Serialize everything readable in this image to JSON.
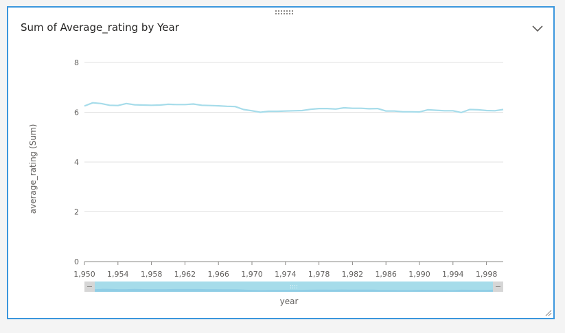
{
  "visual": {
    "title": "Sum of Average_rating by Year",
    "collapse_icon": "chevron-down-icon",
    "drag_icon": "grip-dots-icon",
    "resize_icon": "resize-corner-icon"
  },
  "colors": {
    "line": "#a6dcea",
    "grid": "#e1e1e1",
    "scroll_track": "#a6dcea",
    "scroll_thumb_end": "#d6d6d6",
    "border": "#3a96dd"
  },
  "chart_data": {
    "type": "line",
    "title": "Sum of Average_rating by Year",
    "xlabel": "year",
    "ylabel": "average_rating (Sum)",
    "ylim": [
      0,
      8
    ],
    "yticks": [
      0,
      2,
      4,
      6,
      8
    ],
    "xlim": [
      1950,
      2000
    ],
    "xticks": [
      1950,
      1954,
      1958,
      1962,
      1966,
      1970,
      1974,
      1978,
      1982,
      1986,
      1990,
      1994,
      1998
    ],
    "xtick_labels": [
      "1,950",
      "1,954",
      "1,958",
      "1,962",
      "1,966",
      "1,970",
      "1,974",
      "1,978",
      "1,982",
      "1,986",
      "1,990",
      "1,994",
      "1,998"
    ],
    "grid": true,
    "x": [
      1950,
      1951,
      1952,
      1953,
      1954,
      1955,
      1956,
      1957,
      1958,
      1959,
      1960,
      1961,
      1962,
      1963,
      1964,
      1965,
      1966,
      1967,
      1968,
      1969,
      1970,
      1971,
      1972,
      1973,
      1974,
      1975,
      1976,
      1977,
      1978,
      1979,
      1980,
      1981,
      1982,
      1983,
      1984,
      1985,
      1986,
      1987,
      1988,
      1989,
      1990,
      1991,
      1992,
      1993,
      1994,
      1995,
      1996,
      1997,
      1998,
      1999,
      2000
    ],
    "series": [
      {
        "values": [
          6.25,
          6.38,
          6.35,
          6.28,
          6.27,
          6.35,
          6.3,
          6.29,
          6.28,
          6.29,
          6.32,
          6.31,
          6.31,
          6.33,
          6.28,
          6.27,
          6.26,
          6.24,
          6.23,
          6.11,
          6.06,
          6.0,
          6.04,
          6.04,
          6.05,
          6.06,
          6.07,
          6.12,
          6.15,
          6.15,
          6.13,
          6.18,
          6.16,
          6.16,
          6.14,
          6.15,
          6.05,
          6.05,
          6.02,
          6.02,
          6.01,
          6.1,
          6.08,
          6.06,
          6.06,
          5.99,
          6.11,
          6.1,
          6.07,
          6.06,
          6.11
        ]
      }
    ]
  },
  "scrollbar": {
    "grip_label": "::::"
  }
}
